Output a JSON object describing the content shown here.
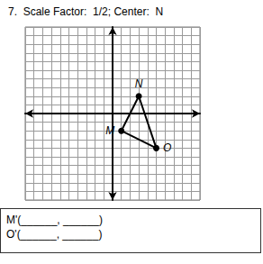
{
  "title": "7.  Scale Factor:  1/2; Center:  N",
  "chart_data": {
    "type": "line",
    "xlim": [
      -10,
      10
    ],
    "ylim": [
      -10,
      10
    ],
    "xticks": [
      -10,
      -9,
      -8,
      -7,
      -6,
      -5,
      -4,
      -3,
      -2,
      -1,
      0,
      1,
      2,
      3,
      4,
      5,
      6,
      7,
      8,
      9,
      10
    ],
    "yticks": [
      -10,
      -9,
      -8,
      -7,
      -6,
      -5,
      -4,
      -3,
      -2,
      -1,
      0,
      1,
      2,
      3,
      4,
      5,
      6,
      7,
      8,
      9,
      10
    ],
    "grid": true,
    "tick_labels": false,
    "series": [
      {
        "labels": [
          "M",
          "N",
          "O"
        ],
        "x": [
          1,
          3,
          5
        ],
        "values": [
          -2,
          2,
          -4
        ],
        "color": "#000000",
        "marker": "circle"
      }
    ]
  },
  "answer_lines": [
    "M'(______, ______)",
    "O'(______, ______)"
  ]
}
